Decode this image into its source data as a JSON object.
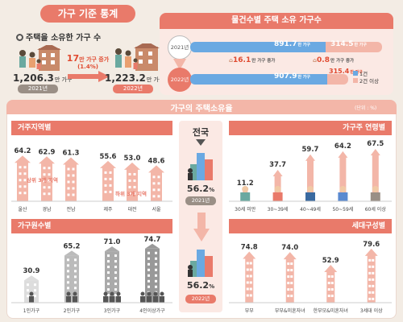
{
  "header": {
    "title": "가구 기준 통계"
  },
  "owned": {
    "title": "주택을 소유한 가구 수",
    "v2021": "1,206.3",
    "unit2021": "만 가구",
    "year2021": "2021년",
    "v2022": "1,223.2",
    "unit2022": "만 가구",
    "year2022": "2022년",
    "increase": "17",
    "increase_unit": "만 가구 증가",
    "increase_pct": "(1.4%)"
  },
  "count_by_number": {
    "title": "물건수별 주택 소유 가구수",
    "row2021": {
      "year": "2021년",
      "one": "891.7",
      "one_unit": "만 가구",
      "two": "314.5",
      "two_unit": "만 가구"
    },
    "row2022": {
      "year": "2022년",
      "one": "907.9",
      "one_unit": "만 가구",
      "two": "315.4",
      "two_unit": "만 가구"
    },
    "diff_one": "16.1",
    "diff_one_unit": "만 가구 증가",
    "diff_two": "0.8",
    "diff_two_unit": "만 가구 증가",
    "legend_one": "1건",
    "legend_two": "2건 이상",
    "colors": {
      "one": "#6aa9e2",
      "two": "#f3b6a8"
    }
  },
  "rate": {
    "title": "가구의 주택소유율",
    "unit": "(단위 : %)"
  },
  "national": {
    "title": "전국",
    "v2021": "56.2",
    "y2021": "2021년",
    "v2022": "56.2",
    "y2022": "2022년",
    "pct": "%"
  },
  "region": {
    "title": "거주지역별",
    "top_label": "상위 3개 지역",
    "bottom_label": "하위 3개 지역",
    "chart_data": {
      "type": "bar",
      "categories": [
        "울산",
        "경남",
        "전남",
        "제주",
        "대전",
        "서울"
      ],
      "values": [
        64.2,
        62.9,
        61.3,
        55.6,
        53.0,
        48.6
      ],
      "labels": [
        "64.2",
        "62.9",
        "61.3",
        "55.6",
        "53.0",
        "48.6"
      ]
    }
  },
  "age": {
    "title": "가구주 연령별",
    "chart_data": {
      "type": "bar",
      "categories": [
        "30세 미만",
        "30~39세",
        "40~49세",
        "50~59세",
        "60세 이상"
      ],
      "values": [
        11.2,
        37.7,
        59.7,
        64.2,
        67.5
      ],
      "labels": [
        "11.2",
        "37.7",
        "59.7",
        "64.2",
        "67.5"
      ]
    }
  },
  "members": {
    "title": "가구원수별",
    "chart_data": {
      "type": "bar",
      "categories": [
        "1인가구",
        "2인가구",
        "3인가구",
        "4인이상가구"
      ],
      "values": [
        30.9,
        65.2,
        71.0,
        74.7
      ],
      "labels": [
        "30.9",
        "65.2",
        "71.0",
        "74.7"
      ]
    }
  },
  "composition": {
    "title": "세대구성별",
    "chart_data": {
      "type": "bar",
      "categories": [
        "부부",
        "부부&미혼자녀",
        "한부모&미혼자녀",
        "3세대 이상"
      ],
      "values": [
        74.8,
        74.0,
        52.9,
        79.6
      ],
      "labels": [
        "74.8",
        "74.0",
        "52.9",
        "79.6"
      ]
    }
  }
}
